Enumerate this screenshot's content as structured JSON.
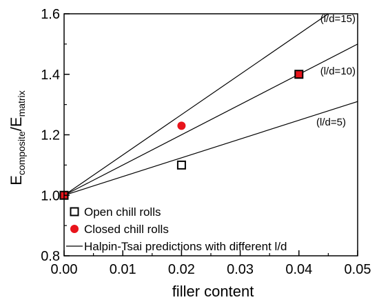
{
  "chart_data": {
    "type": "scatter",
    "xlabel": "filler content",
    "ylabel_main": "E",
    "ylabel_sub1": "composite",
    "ylabel_mid": "/E",
    "ylabel_sub2": "matrix",
    "xlim": [
      0.0,
      0.05
    ],
    "ylim": [
      0.8,
      1.6
    ],
    "xticks": [
      0.0,
      0.01,
      0.02,
      0.03,
      0.04,
      0.05
    ],
    "xtick_labels": [
      "0.00",
      "0.01",
      "0.02",
      "0.03",
      "0.04",
      "0.05"
    ],
    "yticks": [
      0.8,
      1.0,
      1.2,
      1.4,
      1.6
    ],
    "ytick_labels": [
      "0.8",
      "1.0",
      "1.2",
      "1.4",
      "1.6"
    ],
    "grid": false,
    "legend_position": "bottom-left",
    "series": [
      {
        "name": "Open chill rolls",
        "marker": "open-square",
        "color": "#000000",
        "points": [
          [
            0.0,
            1.0
          ],
          [
            0.02,
            1.1
          ],
          [
            0.04,
            1.4
          ]
        ]
      },
      {
        "name": "Closed chill rolls",
        "marker": "filled-circle",
        "color": "#e8141b",
        "points": [
          [
            0.0,
            1.0
          ],
          [
            0.02,
            1.23
          ],
          [
            0.04,
            1.4
          ]
        ]
      }
    ],
    "lines": {
      "name": "Halpin-Tsai predictions with different l/d",
      "color": "#000000",
      "items": [
        {
          "label": "(l/d=15)",
          "points": [
            [
              0.0,
              1.0
            ],
            [
              0.045,
              1.6
            ]
          ]
        },
        {
          "label": "(l/d=10)",
          "points": [
            [
              0.0,
              1.0
            ],
            [
              0.05,
              1.5
            ]
          ]
        },
        {
          "label": "(l/d=5)",
          "points": [
            [
              0.0,
              1.0
            ],
            [
              0.05,
              1.31
            ]
          ]
        }
      ]
    }
  }
}
